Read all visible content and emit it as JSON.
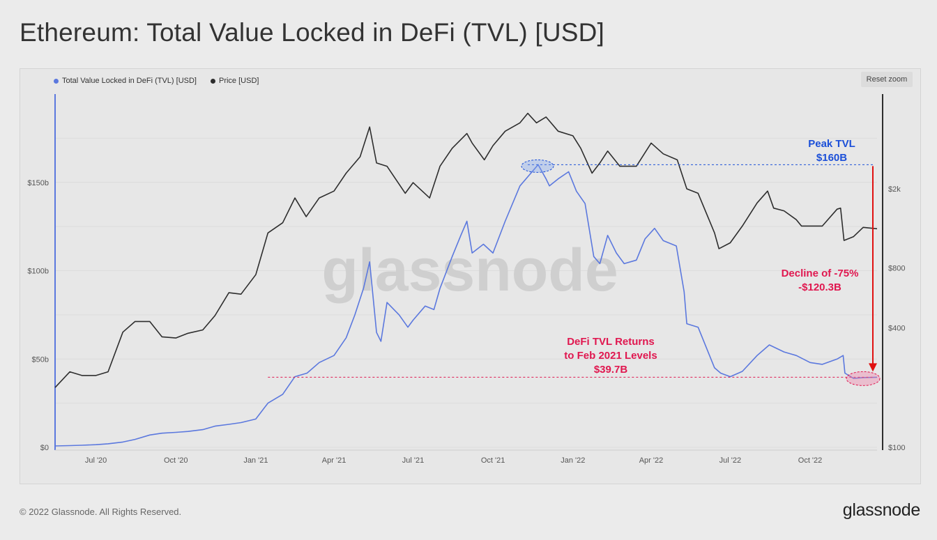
{
  "page": {
    "title": "Ethereum: Total Value Locked in DeFi (TVL) [USD]",
    "copyright": "© 2022 Glassnode. All Rights Reserved.",
    "brand": "glassnode",
    "watermark": "glassnode"
  },
  "controls": {
    "reset_zoom": "Reset zoom"
  },
  "colors": {
    "tvl": "#5b78de",
    "price": "#2d2d2d",
    "peak_annotation": "#1b4fd8",
    "decline_annotation": "#e0174f",
    "arrow": "#e01010",
    "grid": "#dcdcdc",
    "background": "#e7e7e7"
  },
  "chart_data": {
    "type": "line",
    "title": "Ethereum: Total Value Locked in DeFi (TVL) [USD]",
    "x_range": [
      "2020-05-15",
      "2022-12-17"
    ],
    "x_ticks": [
      {
        "date": "2020-07-01",
        "label": "Jul '20"
      },
      {
        "date": "2020-10-01",
        "label": "Oct '20"
      },
      {
        "date": "2021-01-01",
        "label": "Jan '21"
      },
      {
        "date": "2021-04-01",
        "label": "Apr '21"
      },
      {
        "date": "2021-07-01",
        "label": "Jul '21"
      },
      {
        "date": "2021-10-01",
        "label": "Oct '21"
      },
      {
        "date": "2022-01-01",
        "label": "Jan '22"
      },
      {
        "date": "2022-04-01",
        "label": "Apr '22"
      },
      {
        "date": "2022-07-01",
        "label": "Jul '22"
      },
      {
        "date": "2022-10-01",
        "label": "Oct '22"
      }
    ],
    "y_left": {
      "scale": "linear",
      "range": [
        0,
        200
      ],
      "unit": "billion USD",
      "ticks": [
        {
          "value": 0,
          "label": "$0"
        },
        {
          "value": 50,
          "label": "$50b"
        },
        {
          "value": 100,
          "label": "$100b"
        },
        {
          "value": 150,
          "label": "$150b"
        }
      ]
    },
    "y_right": {
      "scale": "log",
      "range": [
        100,
        6000
      ],
      "unit": "USD",
      "ticks": [
        {
          "value": 100,
          "label": "$100"
        },
        {
          "value": 400,
          "label": "$400"
        },
        {
          "value": 800,
          "label": "$800"
        },
        {
          "value": 2000,
          "label": "$2k"
        }
      ]
    },
    "grid": true,
    "legend": {
      "placement": "top-left"
    },
    "series": [
      {
        "name": "Total Value Locked in DeFi (TVL) [USD]",
        "axis": "left",
        "color": "#5b78de",
        "points": [
          [
            "2020-05-15",
            0.8
          ],
          [
            "2020-06-01",
            1.0
          ],
          [
            "2020-06-15",
            1.2
          ],
          [
            "2020-07-01",
            1.5
          ],
          [
            "2020-07-15",
            2.0
          ],
          [
            "2020-08-01",
            3.0
          ],
          [
            "2020-08-15",
            4.5
          ],
          [
            "2020-09-01",
            7.0
          ],
          [
            "2020-09-15",
            8.0
          ],
          [
            "2020-10-01",
            8.5
          ],
          [
            "2020-10-15",
            9.0
          ],
          [
            "2020-11-01",
            10.0
          ],
          [
            "2020-11-15",
            12.0
          ],
          [
            "2020-12-01",
            13.0
          ],
          [
            "2020-12-15",
            14.0
          ],
          [
            "2021-01-01",
            16.0
          ],
          [
            "2021-01-15",
            25.0
          ],
          [
            "2021-02-01",
            30.0
          ],
          [
            "2021-02-15",
            40.0
          ],
          [
            "2021-03-01",
            42.0
          ],
          [
            "2021-03-15",
            48.0
          ],
          [
            "2021-04-01",
            52.0
          ],
          [
            "2021-04-15",
            62.0
          ],
          [
            "2021-04-25",
            75.0
          ],
          [
            "2021-05-05",
            90.0
          ],
          [
            "2021-05-12",
            105.0
          ],
          [
            "2021-05-20",
            65.0
          ],
          [
            "2021-05-25",
            60.0
          ],
          [
            "2021-06-01",
            82.0
          ],
          [
            "2021-06-15",
            75.0
          ],
          [
            "2021-06-25",
            68.0
          ],
          [
            "2021-07-01",
            72.0
          ],
          [
            "2021-07-15",
            80.0
          ],
          [
            "2021-07-25",
            78.0
          ],
          [
            "2021-08-01",
            90.0
          ],
          [
            "2021-08-15",
            108.0
          ],
          [
            "2021-08-25",
            120.0
          ],
          [
            "2021-09-01",
            128.0
          ],
          [
            "2021-09-07",
            110.0
          ],
          [
            "2021-09-20",
            115.0
          ],
          [
            "2021-10-01",
            110.0
          ],
          [
            "2021-10-15",
            128.0
          ],
          [
            "2021-11-01",
            148.0
          ],
          [
            "2021-11-15",
            156.0
          ],
          [
            "2021-11-22",
            160.0
          ],
          [
            "2021-12-01",
            152.0
          ],
          [
            "2021-12-05",
            148.0
          ],
          [
            "2021-12-15",
            152.0
          ],
          [
            "2021-12-27",
            156.0
          ],
          [
            "2022-01-05",
            145.0
          ],
          [
            "2022-01-15",
            138.0
          ],
          [
            "2022-01-25",
            108.0
          ],
          [
            "2022-02-01",
            104.0
          ],
          [
            "2022-02-10",
            120.0
          ],
          [
            "2022-02-20",
            110.0
          ],
          [
            "2022-03-01",
            104.0
          ],
          [
            "2022-03-15",
            106.0
          ],
          [
            "2022-03-25",
            118.0
          ],
          [
            "2022-04-05",
            124.0
          ],
          [
            "2022-04-15",
            117.0
          ],
          [
            "2022-04-30",
            114.0
          ],
          [
            "2022-05-09",
            88.0
          ],
          [
            "2022-05-12",
            70.0
          ],
          [
            "2022-05-25",
            68.0
          ],
          [
            "2022-06-13",
            45.0
          ],
          [
            "2022-06-20",
            42.0
          ],
          [
            "2022-07-01",
            40.0
          ],
          [
            "2022-07-15",
            43.0
          ],
          [
            "2022-08-01",
            52.0
          ],
          [
            "2022-08-15",
            58.0
          ],
          [
            "2022-09-01",
            54.0
          ],
          [
            "2022-09-15",
            52.0
          ],
          [
            "2022-10-01",
            48.0
          ],
          [
            "2022-10-15",
            47.0
          ],
          [
            "2022-11-01",
            50.0
          ],
          [
            "2022-11-08",
            52.0
          ],
          [
            "2022-11-10",
            42.0
          ],
          [
            "2022-11-20",
            39.0
          ],
          [
            "2022-12-01",
            39.5
          ],
          [
            "2022-12-17",
            39.7
          ]
        ]
      },
      {
        "name": "Price [USD]",
        "axis": "right",
        "color": "#2d2d2d",
        "points": [
          [
            "2020-05-15",
            200
          ],
          [
            "2020-06-01",
            240
          ],
          [
            "2020-06-15",
            230
          ],
          [
            "2020-07-01",
            230
          ],
          [
            "2020-07-15",
            240
          ],
          [
            "2020-08-01",
            380
          ],
          [
            "2020-08-15",
            430
          ],
          [
            "2020-09-01",
            430
          ],
          [
            "2020-09-15",
            360
          ],
          [
            "2020-10-01",
            355
          ],
          [
            "2020-10-15",
            375
          ],
          [
            "2020-11-01",
            390
          ],
          [
            "2020-11-15",
            460
          ],
          [
            "2020-12-01",
            600
          ],
          [
            "2020-12-15",
            590
          ],
          [
            "2021-01-01",
            740
          ],
          [
            "2021-01-15",
            1200
          ],
          [
            "2021-02-01",
            1350
          ],
          [
            "2021-02-15",
            1800
          ],
          [
            "2021-02-28",
            1450
          ],
          [
            "2021-03-15",
            1800
          ],
          [
            "2021-04-01",
            1950
          ],
          [
            "2021-04-15",
            2400
          ],
          [
            "2021-05-01",
            2900
          ],
          [
            "2021-05-12",
            4100
          ],
          [
            "2021-05-20",
            2700
          ],
          [
            "2021-06-01",
            2600
          ],
          [
            "2021-06-22",
            1900
          ],
          [
            "2021-07-01",
            2150
          ],
          [
            "2021-07-20",
            1800
          ],
          [
            "2021-08-01",
            2600
          ],
          [
            "2021-08-15",
            3200
          ],
          [
            "2021-09-01",
            3800
          ],
          [
            "2021-09-07",
            3400
          ],
          [
            "2021-09-21",
            2800
          ],
          [
            "2021-10-01",
            3300
          ],
          [
            "2021-10-15",
            3900
          ],
          [
            "2021-11-01",
            4300
          ],
          [
            "2021-11-10",
            4800
          ],
          [
            "2021-11-20",
            4300
          ],
          [
            "2021-12-01",
            4600
          ],
          [
            "2021-12-15",
            3900
          ],
          [
            "2022-01-01",
            3700
          ],
          [
            "2022-01-10",
            3200
          ],
          [
            "2022-01-23",
            2400
          ],
          [
            "2022-02-01",
            2700
          ],
          [
            "2022-02-10",
            3100
          ],
          [
            "2022-02-24",
            2600
          ],
          [
            "2022-03-15",
            2600
          ],
          [
            "2022-04-01",
            3400
          ],
          [
            "2022-04-15",
            3000
          ],
          [
            "2022-05-01",
            2800
          ],
          [
            "2022-05-12",
            2000
          ],
          [
            "2022-05-25",
            1900
          ],
          [
            "2022-06-13",
            1200
          ],
          [
            "2022-06-18",
            1000
          ],
          [
            "2022-07-01",
            1070
          ],
          [
            "2022-07-15",
            1300
          ],
          [
            "2022-08-01",
            1700
          ],
          [
            "2022-08-13",
            1950
          ],
          [
            "2022-08-20",
            1600
          ],
          [
            "2022-09-01",
            1550
          ],
          [
            "2022-09-15",
            1400
          ],
          [
            "2022-09-21",
            1300
          ],
          [
            "2022-10-15",
            1300
          ],
          [
            "2022-11-01",
            1580
          ],
          [
            "2022-11-05",
            1600
          ],
          [
            "2022-11-09",
            1100
          ],
          [
            "2022-11-20",
            1150
          ],
          [
            "2022-12-01",
            1280
          ],
          [
            "2022-12-17",
            1260
          ]
        ]
      }
    ],
    "annotations": {
      "peak": {
        "label_line1": "Peak TVL",
        "label_line2": "$160B",
        "value": 160,
        "date_start": "2021-11-10",
        "date_end": "2022-12-17"
      },
      "decline": {
        "label_line1": "Decline of -75%",
        "label_line2": "-$120.3B",
        "from": 160,
        "to": 39.7
      },
      "return": {
        "label_line1": "DeFi TVL Returns",
        "label_line2": "to Feb 2021 Levels",
        "label_line3": "$39.7B",
        "value": 39.7,
        "date_start": "2021-01-15",
        "date_end": "2022-12-17"
      }
    }
  }
}
